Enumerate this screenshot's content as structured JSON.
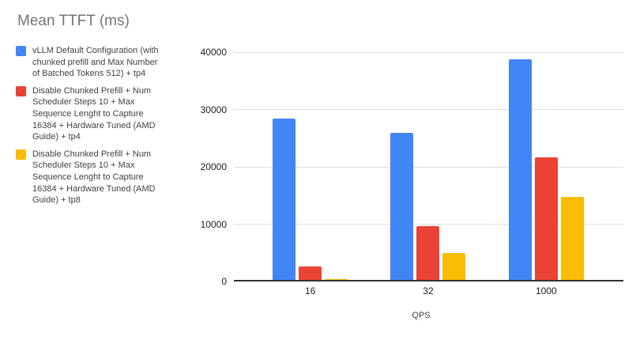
{
  "chart_data": {
    "type": "bar",
    "title": "Mean TTFT (ms)",
    "xlabel": "QPS",
    "ylabel": "",
    "categories": [
      "16",
      "32",
      "1000"
    ],
    "series": [
      {
        "name": "vLLM Default Configuration (with chunked prefill and Max Number of Batched Tokens 512) + tp4",
        "color": "#4285F4",
        "values": [
          28400,
          25800,
          38800
        ]
      },
      {
        "name": "Disable Chunked Prefill + Num Scheduler Steps 10 + Max Sequence Lenght to Capture 16384 + Hardware Tuned (AMD Guide) + tp4",
        "color": "#EA4335",
        "values": [
          2300,
          9400,
          21500
        ]
      },
      {
        "name": "Disable Chunked Prefill + Num Scheduler Steps 10 + Max Sequence Lenght to Capture 16384 + Hardware Tuned (AMD Guide) + tp8",
        "color": "#FBBC04",
        "values": [
          200,
          4700,
          14600
        ]
      }
    ],
    "ylim": [
      0,
      40000
    ],
    "yticks": [
      0,
      10000,
      20000,
      30000,
      40000
    ],
    "grid": true,
    "legend_position": "left"
  },
  "legend": {
    "items": [
      {
        "color": "#4285F4",
        "lines": [
          "vLLM Default Configuration (with",
          "chunked prefill and Max Number",
          "of Batched Tokens 512) + tp4"
        ]
      },
      {
        "color": "#EA4335",
        "lines": [
          "Disable Chunked Prefill + Num",
          "Scheduler Steps 10 + Max",
          "Sequence Lenght to Capture",
          "16384 + Hardware Tuned (AMD",
          "Guide) + tp4"
        ]
      },
      {
        "color": "#FBBC04",
        "lines": [
          "Disable Chunked Prefill + Num",
          "Scheduler Steps 10 + Max",
          "Sequence Lenght to Capture",
          "16384 + Hardware Tuned (AMD",
          "Guide) + tp8"
        ]
      }
    ]
  },
  "axis_colors": {
    "baseline": "#333333",
    "gridline": "#dcdcdc",
    "tick_text": "#202124"
  }
}
